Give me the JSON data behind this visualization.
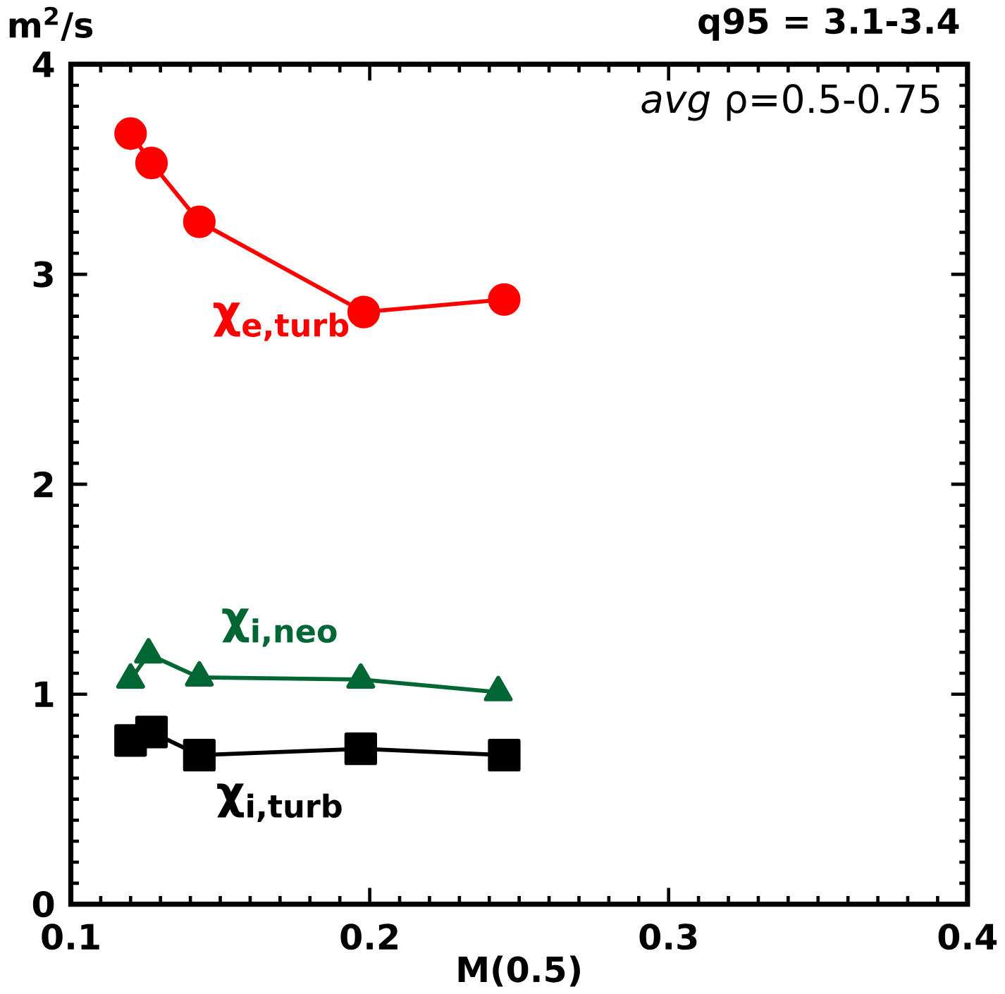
{
  "chart_data": {
    "type": "line",
    "title": "q95 = 3.1-3.4",
    "xlabel": "M(0.5)",
    "ylabel": "m$^{2}$/s",
    "annotations": [
      "*avg* ρ=0.5-0.75"
    ],
    "xlim": [
      0.1,
      0.4
    ],
    "xticks": [
      0.1,
      0.2,
      0.3,
      0.4
    ],
    "ylim": [
      0,
      4
    ],
    "yticks": [
      0,
      1,
      2,
      3,
      4
    ],
    "series": [
      {
        "name": "χ$_{e,turb}$",
        "color": "#ff0000",
        "marker": "circle",
        "x": [
          0.12,
          0.127,
          0.143,
          0.198,
          0.245
        ],
        "values": [
          3.67,
          3.53,
          3.25,
          2.82,
          2.88
        ]
      },
      {
        "name": "χ$_{i,neo}$",
        "color": "#006633",
        "marker": "triangle",
        "x": [
          0.12,
          0.126,
          0.143,
          0.197,
          0.243
        ],
        "values": [
          1.07,
          1.19,
          1.08,
          1.07,
          1.01
        ]
      },
      {
        "name": "χ$_{i,turb}$",
        "color": "#000000",
        "marker": "square",
        "x": [
          0.12,
          0.127,
          0.143,
          0.197,
          0.245
        ],
        "values": [
          0.78,
          0.82,
          0.71,
          0.74,
          0.71
        ]
      }
    ]
  }
}
